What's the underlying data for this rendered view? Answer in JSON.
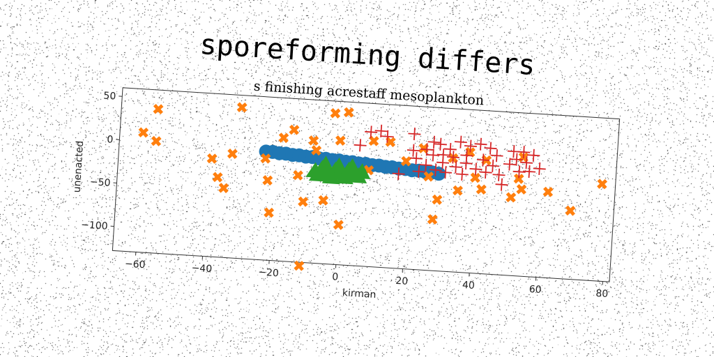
{
  "chart_data": {
    "type": "scatter",
    "title": "sporeforming differs",
    "subtitle": "s finishing acrestaff mesoplankton",
    "xlabel": "kirman",
    "ylabel": "unenacted",
    "xlim": [
      -67,
      82
    ],
    "ylim": [
      -128,
      60
    ],
    "x_ticks": [
      -60,
      -40,
      -20,
      0,
      20,
      40,
      60,
      80
    ],
    "y_ticks": [
      50,
      0,
      -50,
      -100
    ],
    "x_tick_labels": [
      "−60",
      "−40",
      "−20",
      "0",
      "20",
      "40",
      "60",
      "80"
    ],
    "y_tick_labels": [
      "50",
      "0",
      "−50",
      "−100"
    ],
    "grid": false,
    "series": [
      {
        "marker": "circle-band",
        "color": "#1f77b4",
        "points": [
          [
            -23,
            -3
          ],
          [
            -21,
            -3
          ],
          [
            -19,
            -4
          ],
          [
            -17,
            -4
          ],
          [
            -15,
            -5
          ],
          [
            -13,
            -5
          ],
          [
            -11,
            -6
          ],
          [
            -9,
            -6
          ],
          [
            -7,
            -7
          ],
          [
            -5,
            -7
          ],
          [
            -3,
            -8
          ],
          [
            -1,
            -8
          ],
          [
            1,
            -9
          ],
          [
            3,
            -9
          ],
          [
            5,
            -10
          ],
          [
            7,
            -10
          ],
          [
            9,
            -11
          ],
          [
            11,
            -11
          ],
          [
            13,
            -12
          ],
          [
            15,
            -12
          ],
          [
            17,
            -13
          ],
          [
            19,
            -13
          ],
          [
            21,
            -14
          ],
          [
            23,
            -14
          ],
          [
            25,
            -15
          ],
          [
            27,
            -15
          ],
          [
            29,
            -16
          ]
        ]
      },
      {
        "marker": "x",
        "color": "#ff7f0e",
        "points": [
          [
            -60,
            10
          ],
          [
            -56,
            1
          ],
          [
            -56,
            38
          ],
          [
            -31,
            46
          ],
          [
            -39,
            -15
          ],
          [
            -37,
            -36
          ],
          [
            -35,
            -48
          ],
          [
            -33,
            -8
          ],
          [
            -23,
            -11
          ],
          [
            -22,
            -36
          ],
          [
            -21,
            -73
          ],
          [
            -18,
            14
          ],
          [
            -15,
            24
          ],
          [
            -13,
            -28
          ],
          [
            -11,
            -58
          ],
          [
            -11,
            -132
          ],
          [
            -9,
            13
          ],
          [
            -8,
            2
          ],
          [
            -5,
            -55
          ],
          [
            -3,
            46
          ],
          [
            -1,
            15
          ],
          [
            0,
            -82
          ],
          [
            1,
            48
          ],
          [
            8,
            -17
          ],
          [
            9,
            17
          ],
          [
            14,
            17
          ],
          [
            19,
            -4
          ],
          [
            24,
            12
          ],
          [
            26,
            -20
          ],
          [
            28,
            -69
          ],
          [
            29,
            -46
          ],
          [
            33,
            3
          ],
          [
            35,
            -34
          ],
          [
            38,
            11
          ],
          [
            40,
            -18
          ],
          [
            42,
            -31
          ],
          [
            43,
            3
          ],
          [
            51,
            -38
          ],
          [
            53,
            -16
          ],
          [
            54,
            9
          ],
          [
            54,
            -28
          ],
          [
            62,
            -29
          ],
          [
            69,
            -49
          ],
          [
            78,
            -16
          ]
        ]
      },
      {
        "marker": "triangle",
        "color": "#2ca02c",
        "points": [
          [
            -8,
            -22
          ],
          [
            -6,
            -19
          ],
          [
            -4,
            -24
          ],
          [
            -2,
            -20
          ],
          [
            0,
            -23
          ],
          [
            2,
            -19
          ],
          [
            4,
            -22
          ],
          [
            6,
            -20
          ],
          [
            -7,
            -26
          ],
          [
            -5,
            -14
          ],
          [
            -1,
            -15
          ],
          [
            3,
            -15
          ],
          [
            5,
            -25
          ],
          [
            1,
            -27
          ],
          [
            -3,
            -28
          ]
        ]
      },
      {
        "marker": "plus",
        "color": "#d62728",
        "points": [
          [
            5,
            11
          ],
          [
            8,
            27
          ],
          [
            11,
            29
          ],
          [
            13,
            23
          ],
          [
            17,
            -19
          ],
          [
            21,
            28
          ],
          [
            21,
            9
          ],
          [
            22,
            0
          ],
          [
            23,
            -15
          ],
          [
            25,
            11
          ],
          [
            25,
            -7
          ],
          [
            27,
            20
          ],
          [
            27,
            5
          ],
          [
            28,
            -12
          ],
          [
            29,
            18
          ],
          [
            30,
            6
          ],
          [
            30,
            -3
          ],
          [
            31,
            -14
          ],
          [
            32,
            13
          ],
          [
            33,
            4
          ],
          [
            34,
            -7
          ],
          [
            35,
            22
          ],
          [
            36,
            -15
          ],
          [
            37,
            7
          ],
          [
            37,
            -2
          ],
          [
            38,
            18
          ],
          [
            40,
            -8
          ],
          [
            41,
            21
          ],
          [
            42,
            3
          ],
          [
            43,
            -11
          ],
          [
            44,
            17
          ],
          [
            45,
            -3
          ],
          [
            46,
            9
          ],
          [
            47,
            -13
          ],
          [
            48,
            -24
          ],
          [
            50,
            0
          ],
          [
            51,
            15
          ],
          [
            52,
            6
          ],
          [
            53,
            -8
          ],
          [
            54,
            15
          ],
          [
            55,
            3
          ],
          [
            56,
            -7
          ],
          [
            57,
            12
          ],
          [
            59,
            -3
          ]
        ]
      }
    ]
  }
}
